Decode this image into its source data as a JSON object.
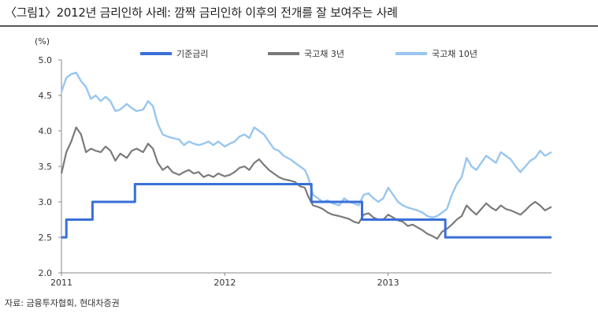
{
  "title": "〈그림1〉2012년 금리인하 사례: 깜짝 금리인하 이후의 전개를 잘 보여주는 사례",
  "source": "자료: 금융투자협회, 현대차증권",
  "colors": {
    "policy": "#3a6fd8",
    "y3": "#7a7a7a",
    "y10": "#99c6ef",
    "axis": "#888888"
  },
  "chart_data": {
    "type": "line",
    "ylabel": "(%)",
    "ylim": [
      2.0,
      5.0
    ],
    "yticks": [
      "2.0",
      "2.5",
      "3.0",
      "3.5",
      "4.0",
      "4.5",
      "5.0"
    ],
    "xlim": [
      2011.0,
      2014.0
    ],
    "xticks": [
      {
        "label": "2011",
        "value": 2011.0
      },
      {
        "label": "2012",
        "value": 2012.0
      },
      {
        "label": "2013",
        "value": 2013.0
      }
    ],
    "grid": false,
    "legend_position": "top",
    "series": [
      {
        "name": "기준금리",
        "step": true,
        "x": [
          2011.0,
          2011.03,
          2011.19,
          2011.45,
          2012.53,
          2012.84,
          2013.35,
          2014.0
        ],
        "y": [
          2.5,
          2.75,
          3.0,
          3.25,
          3.0,
          2.75,
          2.5,
          2.5
        ]
      },
      {
        "name": "국고채 3년",
        "x": [
          2011.0,
          2011.03,
          2011.06,
          2011.09,
          2011.12,
          2011.15,
          2011.18,
          2011.21,
          2011.24,
          2011.27,
          2011.3,
          2011.33,
          2011.36,
          2011.4,
          2011.43,
          2011.46,
          2011.5,
          2011.53,
          2011.56,
          2011.59,
          2011.62,
          2011.65,
          2011.68,
          2011.72,
          2011.75,
          2011.78,
          2011.81,
          2011.84,
          2011.87,
          2011.9,
          2011.93,
          2011.96,
          2012.0,
          2012.03,
          2012.06,
          2012.09,
          2012.12,
          2012.15,
          2012.18,
          2012.21,
          2012.24,
          2012.27,
          2012.3,
          2012.33,
          2012.36,
          2012.4,
          2012.43,
          2012.46,
          2012.49,
          2012.51,
          2012.54,
          2012.57,
          2012.6,
          2012.63,
          2012.66,
          2012.7,
          2012.73,
          2012.76,
          2012.79,
          2012.82,
          2012.85,
          2012.88,
          2012.91,
          2012.94,
          2012.97,
          2013.0,
          2013.03,
          2013.06,
          2013.09,
          2013.12,
          2013.15,
          2013.18,
          2013.21,
          2013.24,
          2013.27,
          2013.3,
          2013.33,
          2013.36,
          2013.39,
          2013.42,
          2013.45,
          2013.48,
          2013.51,
          2013.54,
          2013.57,
          2013.6,
          2013.63,
          2013.66,
          2013.69,
          2013.72,
          2013.75,
          2013.78,
          2013.81,
          2013.84,
          2013.87,
          2013.9,
          2013.93,
          2013.96,
          2014.0
        ],
        "y": [
          3.4,
          3.7,
          3.85,
          4.05,
          3.95,
          3.7,
          3.75,
          3.72,
          3.7,
          3.78,
          3.72,
          3.58,
          3.68,
          3.62,
          3.72,
          3.75,
          3.7,
          3.82,
          3.75,
          3.55,
          3.45,
          3.5,
          3.42,
          3.38,
          3.42,
          3.45,
          3.4,
          3.42,
          3.35,
          3.38,
          3.35,
          3.4,
          3.36,
          3.38,
          3.42,
          3.48,
          3.5,
          3.45,
          3.55,
          3.6,
          3.52,
          3.45,
          3.4,
          3.35,
          3.32,
          3.3,
          3.28,
          3.22,
          3.2,
          3.08,
          2.95,
          2.93,
          2.9,
          2.85,
          2.82,
          2.8,
          2.78,
          2.76,
          2.72,
          2.7,
          2.82,
          2.84,
          2.78,
          2.75,
          2.75,
          2.82,
          2.78,
          2.74,
          2.72,
          2.66,
          2.68,
          2.64,
          2.6,
          2.55,
          2.52,
          2.48,
          2.58,
          2.62,
          2.68,
          2.75,
          2.8,
          2.95,
          2.88,
          2.82,
          2.9,
          2.98,
          2.92,
          2.88,
          2.95,
          2.9,
          2.88,
          2.85,
          2.82,
          2.88,
          2.95,
          3.0,
          2.95,
          2.88,
          2.93
        ]
      },
      {
        "name": "국고채 10년",
        "x": [
          2011.0,
          2011.03,
          2011.06,
          2011.09,
          2011.12,
          2011.15,
          2011.18,
          2011.21,
          2011.24,
          2011.27,
          2011.3,
          2011.33,
          2011.36,
          2011.4,
          2011.43,
          2011.46,
          2011.5,
          2011.53,
          2011.56,
          2011.59,
          2011.62,
          2011.65,
          2011.68,
          2011.72,
          2011.75,
          2011.78,
          2011.81,
          2011.84,
          2011.87,
          2011.9,
          2011.93,
          2011.96,
          2012.0,
          2012.03,
          2012.06,
          2012.09,
          2012.12,
          2012.15,
          2012.18,
          2012.21,
          2012.24,
          2012.27,
          2012.3,
          2012.33,
          2012.36,
          2012.4,
          2012.43,
          2012.46,
          2012.49,
          2012.51,
          2012.54,
          2012.57,
          2012.6,
          2012.63,
          2012.66,
          2012.7,
          2012.73,
          2012.76,
          2012.79,
          2012.82,
          2012.85,
          2012.88,
          2012.91,
          2012.94,
          2012.97,
          2013.0,
          2013.03,
          2013.06,
          2013.09,
          2013.12,
          2013.15,
          2013.18,
          2013.21,
          2013.24,
          2013.27,
          2013.3,
          2013.33,
          2013.36,
          2013.39,
          2013.42,
          2013.45,
          2013.48,
          2013.51,
          2013.54,
          2013.57,
          2013.6,
          2013.63,
          2013.66,
          2013.69,
          2013.72,
          2013.75,
          2013.78,
          2013.81,
          2013.84,
          2013.87,
          2013.9,
          2013.93,
          2013.96,
          2014.0
        ],
        "y": [
          4.55,
          4.75,
          4.8,
          4.82,
          4.7,
          4.62,
          4.45,
          4.5,
          4.42,
          4.48,
          4.42,
          4.28,
          4.3,
          4.38,
          4.32,
          4.28,
          4.3,
          4.42,
          4.35,
          4.1,
          3.95,
          3.92,
          3.9,
          3.88,
          3.8,
          3.85,
          3.82,
          3.8,
          3.82,
          3.85,
          3.8,
          3.85,
          3.78,
          3.82,
          3.85,
          3.92,
          3.95,
          3.9,
          4.05,
          4.0,
          3.95,
          3.85,
          3.75,
          3.72,
          3.65,
          3.6,
          3.55,
          3.5,
          3.45,
          3.35,
          3.1,
          3.05,
          3.0,
          3.02,
          2.98,
          2.95,
          3.05,
          3.0,
          2.98,
          2.95,
          3.1,
          3.12,
          3.05,
          3.0,
          3.05,
          3.2,
          3.1,
          3.0,
          2.95,
          2.92,
          2.9,
          2.88,
          2.85,
          2.8,
          2.78,
          2.8,
          2.85,
          2.9,
          3.1,
          3.25,
          3.35,
          3.62,
          3.5,
          3.45,
          3.55,
          3.65,
          3.6,
          3.55,
          3.7,
          3.65,
          3.6,
          3.5,
          3.42,
          3.5,
          3.58,
          3.62,
          3.72,
          3.65,
          3.7
        ]
      }
    ]
  }
}
